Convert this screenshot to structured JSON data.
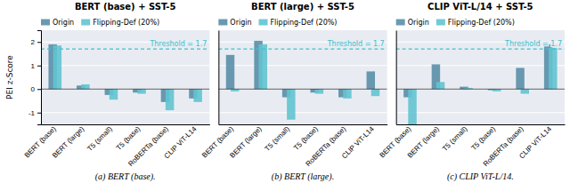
{
  "chart_data": [
    {
      "type": "bar",
      "title": "BERT (base) + SST-5",
      "xlabel": "(a) BERT (base).",
      "ylabel": "PEI z-Score",
      "categories": [
        "BERT (base)",
        "BERT (large)",
        "T5 (small)",
        "T5 (base)",
        "RoBERTa (base)",
        "CLIP ViT-L14"
      ],
      "series": [
        {
          "name": "Origin",
          "color": "#5a8fa8",
          "values": [
            1.9,
            0.15,
            -0.25,
            -0.15,
            -0.55,
            -0.4
          ]
        },
        {
          "name": "Flipping-Def (20%)",
          "color": "#62c4d0",
          "values": [
            1.85,
            0.2,
            -0.45,
            -0.2,
            -0.9,
            -0.55
          ]
        }
      ],
      "annotations": [
        {
          "value": 1.7,
          "label": "Threshold = 1.7",
          "color": "#40c0cc",
          "line_style": "dashed"
        }
      ],
      "ylim": [
        -1.5,
        2.5
      ],
      "yticks": [
        -1,
        0,
        1,
        2
      ],
      "grid": true,
      "legend": "upper left"
    },
    {
      "type": "bar",
      "title": "BERT (large) + SST-5",
      "xlabel": "(b) BERT (large).",
      "categories": [
        "BERT (base)",
        "BERT (large)",
        "T5 (small)",
        "T5 (base)",
        "RoBERTa (base)",
        "CLIP ViT-L14"
      ],
      "series": [
        {
          "name": "Origin",
          "color": "#5a8fa8",
          "values": [
            1.45,
            2.05,
            -0.35,
            -0.15,
            -0.35,
            0.75
          ]
        },
        {
          "name": "Flipping-Def (20%)",
          "color": "#62c4d0",
          "values": [
            -0.1,
            1.9,
            -1.3,
            -0.2,
            -0.4,
            -0.3
          ]
        }
      ],
      "annotations": [
        {
          "value": 1.7,
          "label": "Threshold = 1.7",
          "color": "#40c0cc",
          "line_style": "dashed"
        }
      ],
      "ylim": [
        -1.5,
        2.5
      ],
      "yticks": [
        -1,
        0,
        1,
        2
      ],
      "grid": true,
      "legend": "upper left",
      "tick_labels": "x"
    },
    {
      "type": "bar",
      "title": "CLIP ViT-L/14 + SST-5",
      "xlabel": "(c) CLIP ViT-L/14.",
      "categories": [
        "BERT (base)",
        "BERT (large)",
        "T5 (small)",
        "T5 (base)",
        "RoBERTa (base)",
        "CLIP ViT-L14"
      ],
      "series": [
        {
          "name": "Origin",
          "color": "#5a8fa8",
          "values": [
            -0.35,
            1.05,
            0.1,
            -0.05,
            0.9,
            1.9
          ]
        },
        {
          "name": "Flipping-Def (20%)",
          "color": "#62c4d0",
          "values": [
            -1.5,
            0.3,
            0.05,
            -0.1,
            -0.2,
            1.75
          ]
        }
      ],
      "annotations": [
        {
          "value": 1.7,
          "label": "Threshold = 1.7",
          "color": "#40c0cc",
          "line_style": "dashed"
        }
      ],
      "ylim": [
        -1.5,
        2.5
      ],
      "yticks": [
        -1,
        0,
        1,
        2
      ],
      "grid": true,
      "legend": "upper left",
      "tick_labels": "x"
    }
  ]
}
